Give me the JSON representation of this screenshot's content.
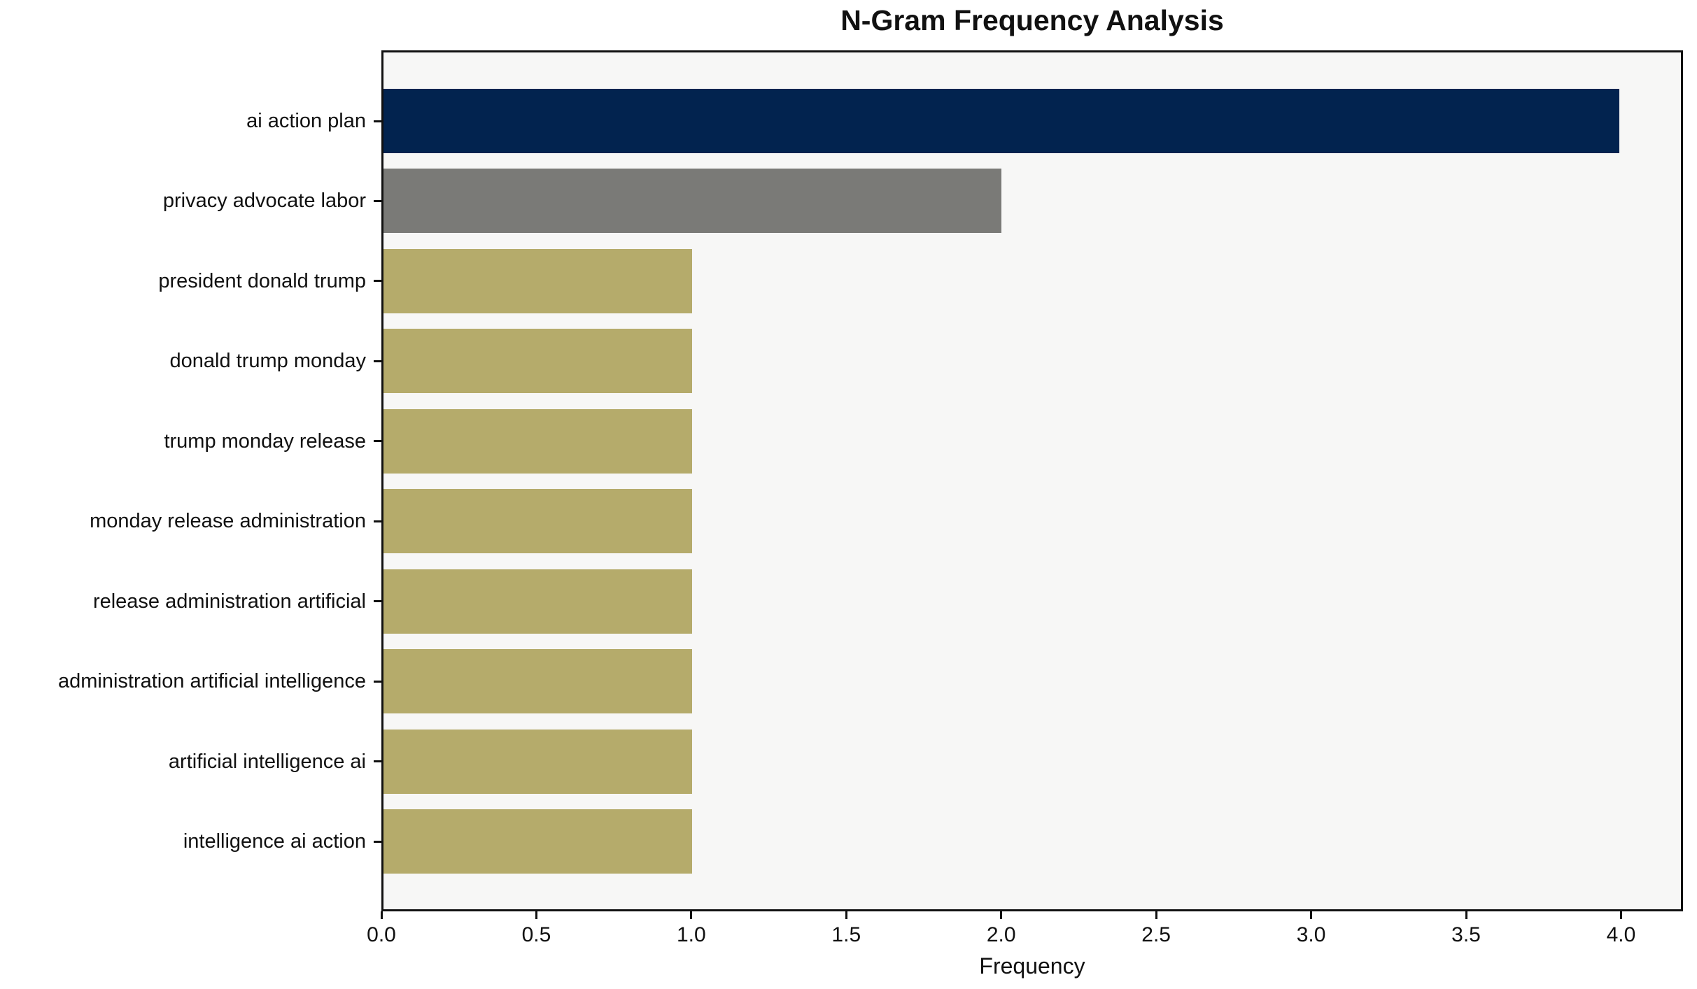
{
  "title": "N-Gram Frequency Analysis",
  "chart_data": {
    "type": "bar",
    "orientation": "horizontal",
    "title": "N-Gram Frequency Analysis",
    "xlabel": "Frequency",
    "ylabel": "",
    "categories": [
      "ai action plan",
      "privacy advocate labor",
      "president donald trump",
      "donald trump monday",
      "trump monday release",
      "monday release administration",
      "release administration artificial",
      "administration artificial intelligence",
      "artificial intelligence ai",
      "intelligence ai action"
    ],
    "values": [
      4,
      2,
      1,
      1,
      1,
      1,
      1,
      1,
      1,
      1
    ],
    "bar_colors": [
      "#02234F",
      "#7A7A77",
      "#B5AB6B",
      "#B5AB6B",
      "#B5AB6B",
      "#B5AB6B",
      "#B5AB6B",
      "#B5AB6B",
      "#B5AB6B",
      "#B5AB6B"
    ],
    "xlim": [
      0,
      4.2
    ],
    "x_ticks": [
      0.0,
      0.5,
      1.0,
      1.5,
      2.0,
      2.5,
      3.0,
      3.5,
      4.0
    ],
    "x_tick_labels": [
      "0.0",
      "0.5",
      "1.0",
      "1.5",
      "2.0",
      "2.5",
      "3.0",
      "3.5",
      "4.0"
    ],
    "grid": "off",
    "legend": "none",
    "plot_background": "#F7F7F6",
    "figure_background": "#FFFFFF",
    "spine_color": "#111111",
    "text_color": "#111111"
  }
}
